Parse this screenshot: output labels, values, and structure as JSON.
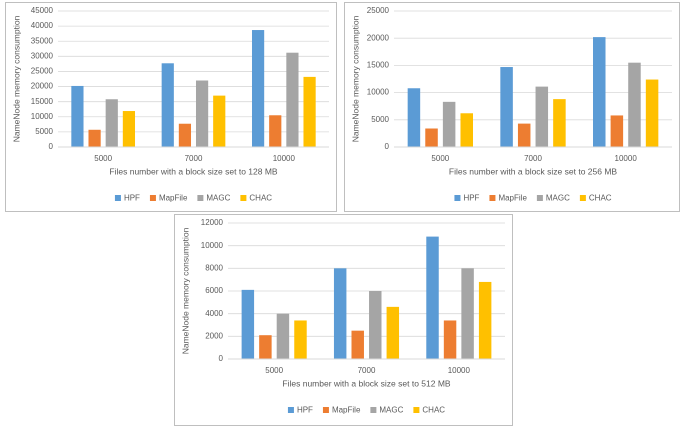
{
  "chart_data": [
    {
      "type": "bar",
      "ylabel": "NameNode memory consumption",
      "xlabel": "Files number with a block size set to 128 MB",
      "categories": [
        "5000",
        "7000",
        "10000"
      ],
      "series": [
        {
          "name": "HPF",
          "color": "#5b9bd5",
          "values": [
            20200,
            27700,
            38700
          ]
        },
        {
          "name": "MapFile",
          "color": "#ed7d31",
          "values": [
            5700,
            7700,
            10500
          ]
        },
        {
          "name": "MAGC",
          "color": "#a5a5a5",
          "values": [
            15800,
            22000,
            31200
          ]
        },
        {
          "name": "CHAC",
          "color": "#ffc000",
          "values": [
            11900,
            17000,
            23200
          ]
        }
      ],
      "ylim": [
        0,
        45000
      ],
      "yticks": [
        0,
        5000,
        10000,
        15000,
        20000,
        25000,
        30000,
        35000,
        40000,
        45000
      ],
      "grid": true
    },
    {
      "type": "bar",
      "ylabel": "NameNode memory consumption",
      "xlabel": "Files number with a block size set to 256 MB",
      "categories": [
        "5000",
        "7000",
        "10000"
      ],
      "series": [
        {
          "name": "HPF",
          "color": "#5b9bd5",
          "values": [
            10800,
            14700,
            20200
          ]
        },
        {
          "name": "MapFile",
          "color": "#ed7d31",
          "values": [
            3400,
            4300,
            5800
          ]
        },
        {
          "name": "MAGC",
          "color": "#a5a5a5",
          "values": [
            8300,
            11100,
            15500
          ]
        },
        {
          "name": "CHAC",
          "color": "#ffc000",
          "values": [
            6200,
            8800,
            12400
          ]
        }
      ],
      "ylim": [
        0,
        25000
      ],
      "yticks": [
        0,
        5000,
        10000,
        15000,
        20000,
        25000
      ],
      "grid": true
    },
    {
      "type": "bar",
      "ylabel": "NameNode memory consumption",
      "xlabel": "Files number with a block size set to 512 MB",
      "categories": [
        "5000",
        "7000",
        "10000"
      ],
      "series": [
        {
          "name": "HPF",
          "color": "#5b9bd5",
          "values": [
            6100,
            8000,
            10800
          ]
        },
        {
          "name": "MapFile",
          "color": "#ed7d31",
          "values": [
            2100,
            2500,
            3400
          ]
        },
        {
          "name": "MAGC",
          "color": "#a5a5a5",
          "values": [
            4000,
            6000,
            8000
          ]
        },
        {
          "name": "CHAC",
          "color": "#ffc000",
          "values": [
            3400,
            4600,
            6800
          ]
        }
      ],
      "ylim": [
        0,
        12000
      ],
      "yticks": [
        0,
        2000,
        4000,
        6000,
        8000,
        10000,
        12000
      ],
      "grid": true
    }
  ]
}
